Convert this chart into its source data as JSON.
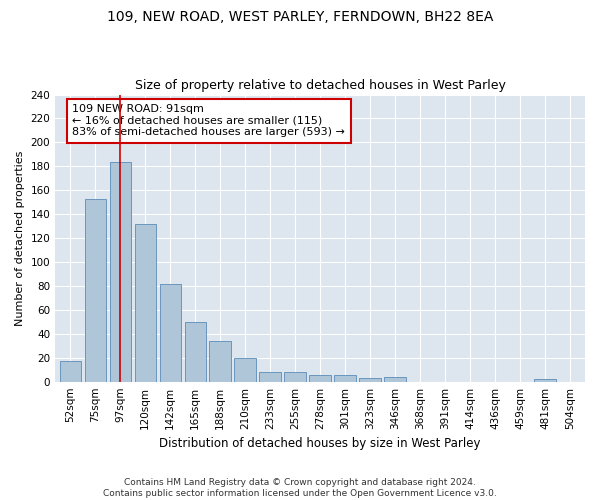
{
  "title1": "109, NEW ROAD, WEST PARLEY, FERNDOWN, BH22 8EA",
  "title2": "Size of property relative to detached houses in West Parley",
  "xlabel": "Distribution of detached houses by size in West Parley",
  "ylabel": "Number of detached properties",
  "categories": [
    "52sqm",
    "75sqm",
    "97sqm",
    "120sqm",
    "142sqm",
    "165sqm",
    "188sqm",
    "210sqm",
    "233sqm",
    "255sqm",
    "278sqm",
    "301sqm",
    "323sqm",
    "346sqm",
    "368sqm",
    "391sqm",
    "414sqm",
    "436sqm",
    "459sqm",
    "481sqm",
    "504sqm"
  ],
  "values": [
    17,
    153,
    184,
    132,
    82,
    50,
    34,
    20,
    8,
    8,
    6,
    6,
    3,
    4,
    0,
    0,
    0,
    0,
    0,
    2,
    0
  ],
  "bar_color": "#aec6d8",
  "bar_edge_color": "#5b8db8",
  "highlight_bar_index": 2,
  "highlight_line_color": "#cc0000",
  "annotation_line1": "109 NEW ROAD: 91sqm",
  "annotation_line2": "← 16% of detached houses are smaller (115)",
  "annotation_line3": "83% of semi-detached houses are larger (593) →",
  "annotation_box_color": "#ffffff",
  "annotation_box_edge": "#cc0000",
  "ylim": [
    0,
    240
  ],
  "yticks": [
    0,
    20,
    40,
    60,
    80,
    100,
    120,
    140,
    160,
    180,
    200,
    220,
    240
  ],
  "background_color": "#dde6ef",
  "grid_color": "#ffffff",
  "fig_background": "#ffffff",
  "footer": "Contains HM Land Registry data © Crown copyright and database right 2024.\nContains public sector information licensed under the Open Government Licence v3.0.",
  "title1_fontsize": 10,
  "title2_fontsize": 9,
  "xlabel_fontsize": 8.5,
  "ylabel_fontsize": 8,
  "tick_fontsize": 7.5,
  "annotation_fontsize": 8,
  "footer_fontsize": 6.5
}
